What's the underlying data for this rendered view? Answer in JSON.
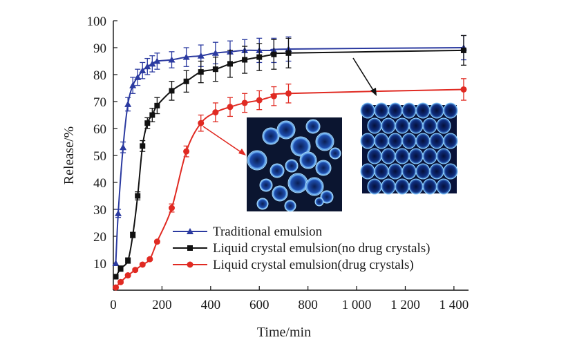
{
  "chart_data": {
    "type": "line",
    "xlabel": "Time/min",
    "ylabel": "Release/%",
    "xlim": [
      0,
      1460
    ],
    "ylim": [
      0,
      100
    ],
    "x_ticks": [
      {
        "value": 0,
        "label": "0"
      },
      {
        "value": 200,
        "label": "200"
      },
      {
        "value": 400,
        "label": "400"
      },
      {
        "value": 600,
        "label": "600"
      },
      {
        "value": 800,
        "label": "800"
      },
      {
        "value": 1000,
        "label": "1 000"
      },
      {
        "value": 1200,
        "label": "1 200"
      },
      {
        "value": 1400,
        "label": "1 400"
      }
    ],
    "y_ticks": [
      {
        "value": 10,
        "label": "10"
      },
      {
        "value": 20,
        "label": "20"
      },
      {
        "value": 30,
        "label": "30"
      },
      {
        "value": 40,
        "label": "40"
      },
      {
        "value": 50,
        "label": "50"
      },
      {
        "value": 60,
        "label": "60"
      },
      {
        "value": 70,
        "label": "70"
      },
      {
        "value": 80,
        "label": "80"
      },
      {
        "value": 90,
        "label": "90"
      },
      {
        "value": 100,
        "label": "100"
      }
    ],
    "grid": false,
    "legend_position": "bottom-left",
    "series": [
      {
        "name": "Traditional emulsion",
        "color": "#2b3aa0",
        "marker": "triangle",
        "points": [
          {
            "x": 10,
            "y": 10,
            "err": 0
          },
          {
            "x": 20,
            "y": 28.5,
            "err": 1.5
          },
          {
            "x": 40,
            "y": 53,
            "err": 2
          },
          {
            "x": 60,
            "y": 69,
            "err": 2.5
          },
          {
            "x": 80,
            "y": 76,
            "err": 3
          },
          {
            "x": 100,
            "y": 79,
            "err": 3
          },
          {
            "x": 120,
            "y": 81.5,
            "err": 3
          },
          {
            "x": 140,
            "y": 83,
            "err": 3
          },
          {
            "x": 160,
            "y": 84,
            "err": 3
          },
          {
            "x": 180,
            "y": 85,
            "err": 3
          },
          {
            "x": 240,
            "y": 85.5,
            "err": 3
          },
          {
            "x": 300,
            "y": 86.5,
            "err": 3.5
          },
          {
            "x": 360,
            "y": 87,
            "err": 4
          },
          {
            "x": 420,
            "y": 88,
            "err": 4
          },
          {
            "x": 480,
            "y": 88.5,
            "err": 4
          },
          {
            "x": 540,
            "y": 89,
            "err": 4
          },
          {
            "x": 600,
            "y": 89,
            "err": 4.5
          },
          {
            "x": 660,
            "y": 89,
            "err": 4.5
          },
          {
            "x": 720,
            "y": 89.5,
            "err": 4.5
          },
          {
            "x": 1440,
            "y": 90,
            "err": 4.5
          }
        ]
      },
      {
        "name": "Liquid crystal emulsion(no drug crystals)",
        "color": "#111111",
        "marker": "square",
        "points": [
          {
            "x": 10,
            "y": 5,
            "err": 0
          },
          {
            "x": 30,
            "y": 8,
            "err": 1
          },
          {
            "x": 60,
            "y": 11,
            "err": 1
          },
          {
            "x": 80,
            "y": 20.5,
            "err": 1
          },
          {
            "x": 100,
            "y": 35,
            "err": 1.5
          },
          {
            "x": 120,
            "y": 53.5,
            "err": 2
          },
          {
            "x": 140,
            "y": 62,
            "err": 2
          },
          {
            "x": 160,
            "y": 65,
            "err": 2.5
          },
          {
            "x": 180,
            "y": 68.5,
            "err": 3
          },
          {
            "x": 240,
            "y": 74,
            "err": 3.5
          },
          {
            "x": 300,
            "y": 77.5,
            "err": 4
          },
          {
            "x": 360,
            "y": 81,
            "err": 4
          },
          {
            "x": 420,
            "y": 82,
            "err": 4.5
          },
          {
            "x": 480,
            "y": 84,
            "err": 5
          },
          {
            "x": 540,
            "y": 85.5,
            "err": 5
          },
          {
            "x": 600,
            "y": 86.5,
            "err": 5
          },
          {
            "x": 660,
            "y": 87.5,
            "err": 5.5
          },
          {
            "x": 720,
            "y": 88,
            "err": 5.5
          },
          {
            "x": 1440,
            "y": 89,
            "err": 5.5
          }
        ]
      },
      {
        "name": "Liquid crystal emulsion(drug crystals)",
        "color": "#e02a22",
        "marker": "circle",
        "points": [
          {
            "x": 10,
            "y": 1,
            "err": 0
          },
          {
            "x": 30,
            "y": 3,
            "err": 0.5
          },
          {
            "x": 60,
            "y": 5.5,
            "err": 0.5
          },
          {
            "x": 90,
            "y": 7.5,
            "err": 0.5
          },
          {
            "x": 120,
            "y": 9.5,
            "err": 0.5
          },
          {
            "x": 150,
            "y": 11.5,
            "err": 0.5
          },
          {
            "x": 180,
            "y": 18,
            "err": 0.5
          },
          {
            "x": 240,
            "y": 30.5,
            "err": 1.5
          },
          {
            "x": 300,
            "y": 51.5,
            "err": 2
          },
          {
            "x": 360,
            "y": 62,
            "err": 3
          },
          {
            "x": 420,
            "y": 66,
            "err": 3.5
          },
          {
            "x": 480,
            "y": 68,
            "err": 3.5
          },
          {
            "x": 540,
            "y": 69.5,
            "err": 3.5
          },
          {
            "x": 600,
            "y": 70.5,
            "err": 3.5
          },
          {
            "x": 660,
            "y": 72,
            "err": 3.5
          },
          {
            "x": 720,
            "y": 73,
            "err": 3.5
          },
          {
            "x": 1440,
            "y": 74.5,
            "err": 4
          }
        ]
      }
    ],
    "insets": [
      {
        "name": "drug-crystals-micrograph",
        "pointer_color": "#e02a22",
        "points_to": "Liquid crystal emulsion(drug crystals)"
      },
      {
        "name": "no-drug-crystals-micrograph",
        "pointer_color": "#111111",
        "points_to": "Liquid crystal emulsion(no drug crystals)"
      }
    ]
  }
}
